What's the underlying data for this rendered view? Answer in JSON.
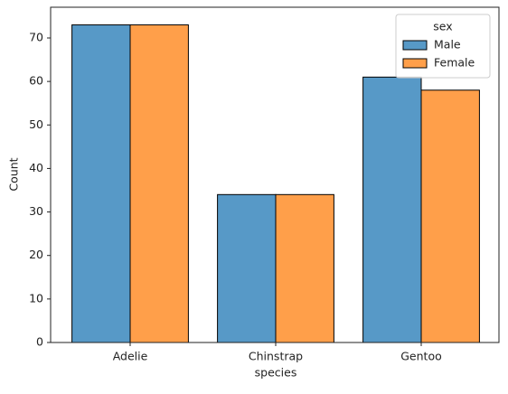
{
  "chart_data": {
    "type": "bar",
    "categories": [
      "Adelie",
      "Chinstrap",
      "Gentoo"
    ],
    "series": [
      {
        "name": "Male",
        "color": "#5799c7",
        "values": [
          73,
          34,
          61
        ]
      },
      {
        "name": "Female",
        "color": "#ff9f4a",
        "values": [
          73,
          34,
          58
        ]
      }
    ],
    "xlabel": "species",
    "ylabel": "Count",
    "legend_title": "sex",
    "legend": "upper right",
    "ylim": [
      0,
      77.06
    ],
    "yticks": [
      0,
      10,
      20,
      30,
      40,
      50,
      60,
      70
    ]
  }
}
